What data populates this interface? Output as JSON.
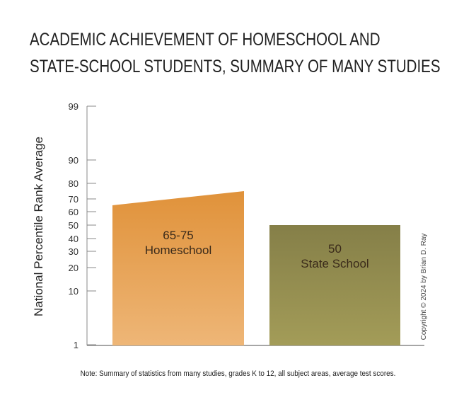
{
  "chart_data": {
    "type": "bar",
    "title_lines": [
      "ACADEMIC ACHIEVEMENT OF HOMESCHOOL AND",
      "STATE-SCHOOL STUDENTS, SUMMARY OF MANY STUDIES"
    ],
    "ylabel": "National Percentile Rank Average",
    "yticks": [
      1,
      10,
      20,
      30,
      40,
      50,
      60,
      70,
      80,
      90,
      99
    ],
    "ylim": [
      1,
      99
    ],
    "bars": [
      {
        "name": "Homeschool",
        "value_label": "65-75",
        "low": 65,
        "high": 75,
        "color_top": "#e0923a",
        "color_bottom": "#eeb677"
      },
      {
        "name": "State School",
        "value_label": "50",
        "low": 50,
        "high": 50,
        "color_top": "#857f48",
        "color_bottom": "#a39c58"
      }
    ],
    "copyright": "Copyright © 2024  by Brian D. Ray",
    "note": "Note: Summary of statistics from many studies, grades K to 12, all subject areas, average test scores."
  }
}
